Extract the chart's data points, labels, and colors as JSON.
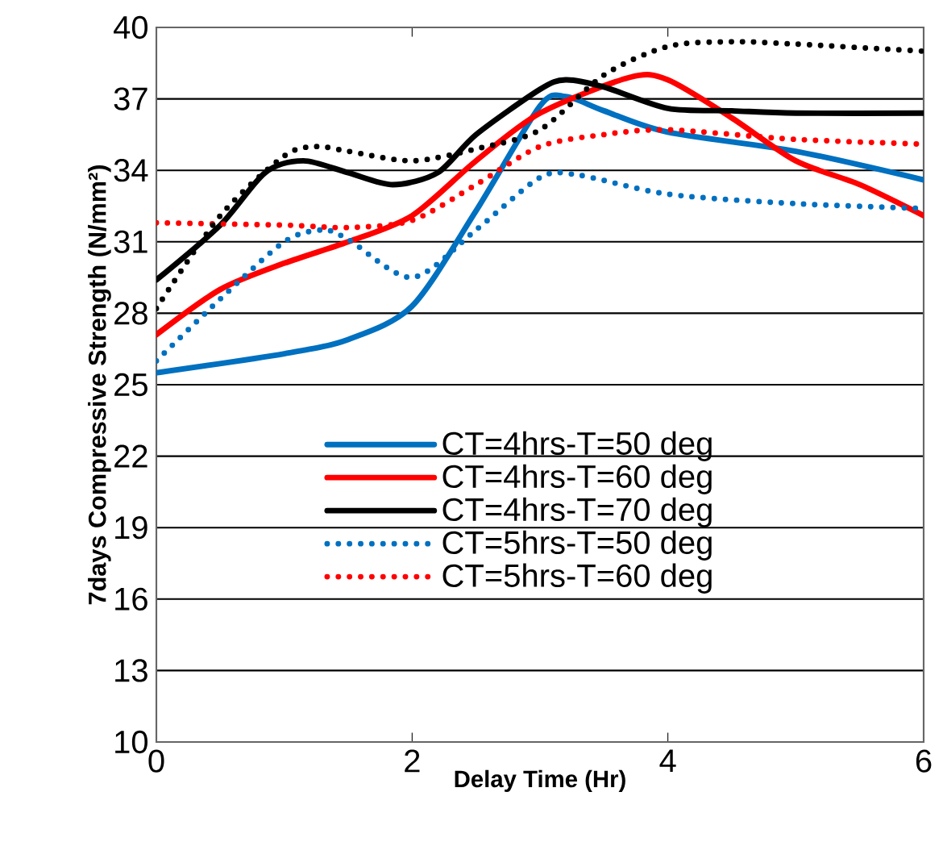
{
  "chart_data": {
    "type": "line",
    "xlabel": "Delay Time (Hr)",
    "ylabel": "7days Compressive Strength (N/mm²)",
    "xlim": [
      0,
      6
    ],
    "xticks": [
      0,
      2,
      4,
      6
    ],
    "ylim": [
      10,
      40
    ],
    "yticks": [
      10,
      13,
      16,
      19,
      22,
      25,
      28,
      31,
      34,
      37,
      40
    ],
    "grid": "y",
    "legend": "bottom",
    "marker": "none",
    "series": [
      {
        "name": "CT=4hrs-T=50 deg",
        "color": "#0070c0",
        "line_style": "solid",
        "x": [
          0,
          1,
          1.5,
          2,
          2.5,
          3,
          3.2,
          3.5,
          4,
          5,
          6
        ],
        "values": [
          25.5,
          26.3,
          26.9,
          28.3,
          32.3,
          36.7,
          37.1,
          36.5,
          35.6,
          34.8,
          33.6
        ]
      },
      {
        "name": "CT=4hrs-T=60 deg",
        "color": "#ff0000",
        "line_style": "solid",
        "x": [
          0,
          0.5,
          1,
          1.5,
          2,
          2.5,
          3,
          3.7,
          4,
          4.5,
          5,
          5.5,
          6
        ],
        "values": [
          27.1,
          29.0,
          30.1,
          31.0,
          32.1,
          34.4,
          36.4,
          37.9,
          37.8,
          36.2,
          34.4,
          33.4,
          32.1
        ]
      },
      {
        "name": "CT=4hrs-T=70 deg",
        "color": "#000000",
        "line_style": "solid",
        "x": [
          0,
          0.5,
          0.85,
          1.15,
          1.5,
          1.85,
          2.2,
          2.5,
          3,
          3.2,
          3.5,
          4,
          4.5,
          5,
          6
        ],
        "values": [
          29.4,
          31.7,
          33.9,
          34.4,
          33.9,
          33.4,
          33.9,
          35.5,
          37.4,
          37.8,
          37.5,
          36.6,
          36.5,
          36.4,
          36.4
        ]
      },
      {
        "name": "CT=5hrs-T=50 deg",
        "color": "#0070c0",
        "line_style": "dotted",
        "x": [
          0,
          0.5,
          1,
          1.3,
          1.5,
          2,
          2.5,
          3,
          3.3,
          4,
          5,
          6
        ],
        "values": [
          26.0,
          28.6,
          31.0,
          31.5,
          31.1,
          29.5,
          31.5,
          33.7,
          33.8,
          33.0,
          32.6,
          32.4
        ]
      },
      {
        "name": "CT=5hrs-T=60 deg",
        "color": "#ff0000",
        "line_style": "dotted",
        "x": [
          0,
          1,
          1.5,
          2,
          2.5,
          3,
          3.5,
          4,
          5,
          6
        ],
        "values": [
          31.8,
          31.7,
          31.6,
          31.9,
          33.4,
          35.0,
          35.5,
          35.7,
          35.3,
          35.1
        ]
      },
      {
        "color": "#000000",
        "line_style": "dotted",
        "x": [
          0,
          0.5,
          1,
          1.25,
          1.5,
          2,
          2.5,
          3,
          3.5,
          4,
          4.5,
          5,
          6
        ],
        "values": [
          28.2,
          32.1,
          34.6,
          35.0,
          34.8,
          34.4,
          34.9,
          35.7,
          38.0,
          39.2,
          39.4,
          39.3,
          39.0
        ]
      }
    ]
  }
}
